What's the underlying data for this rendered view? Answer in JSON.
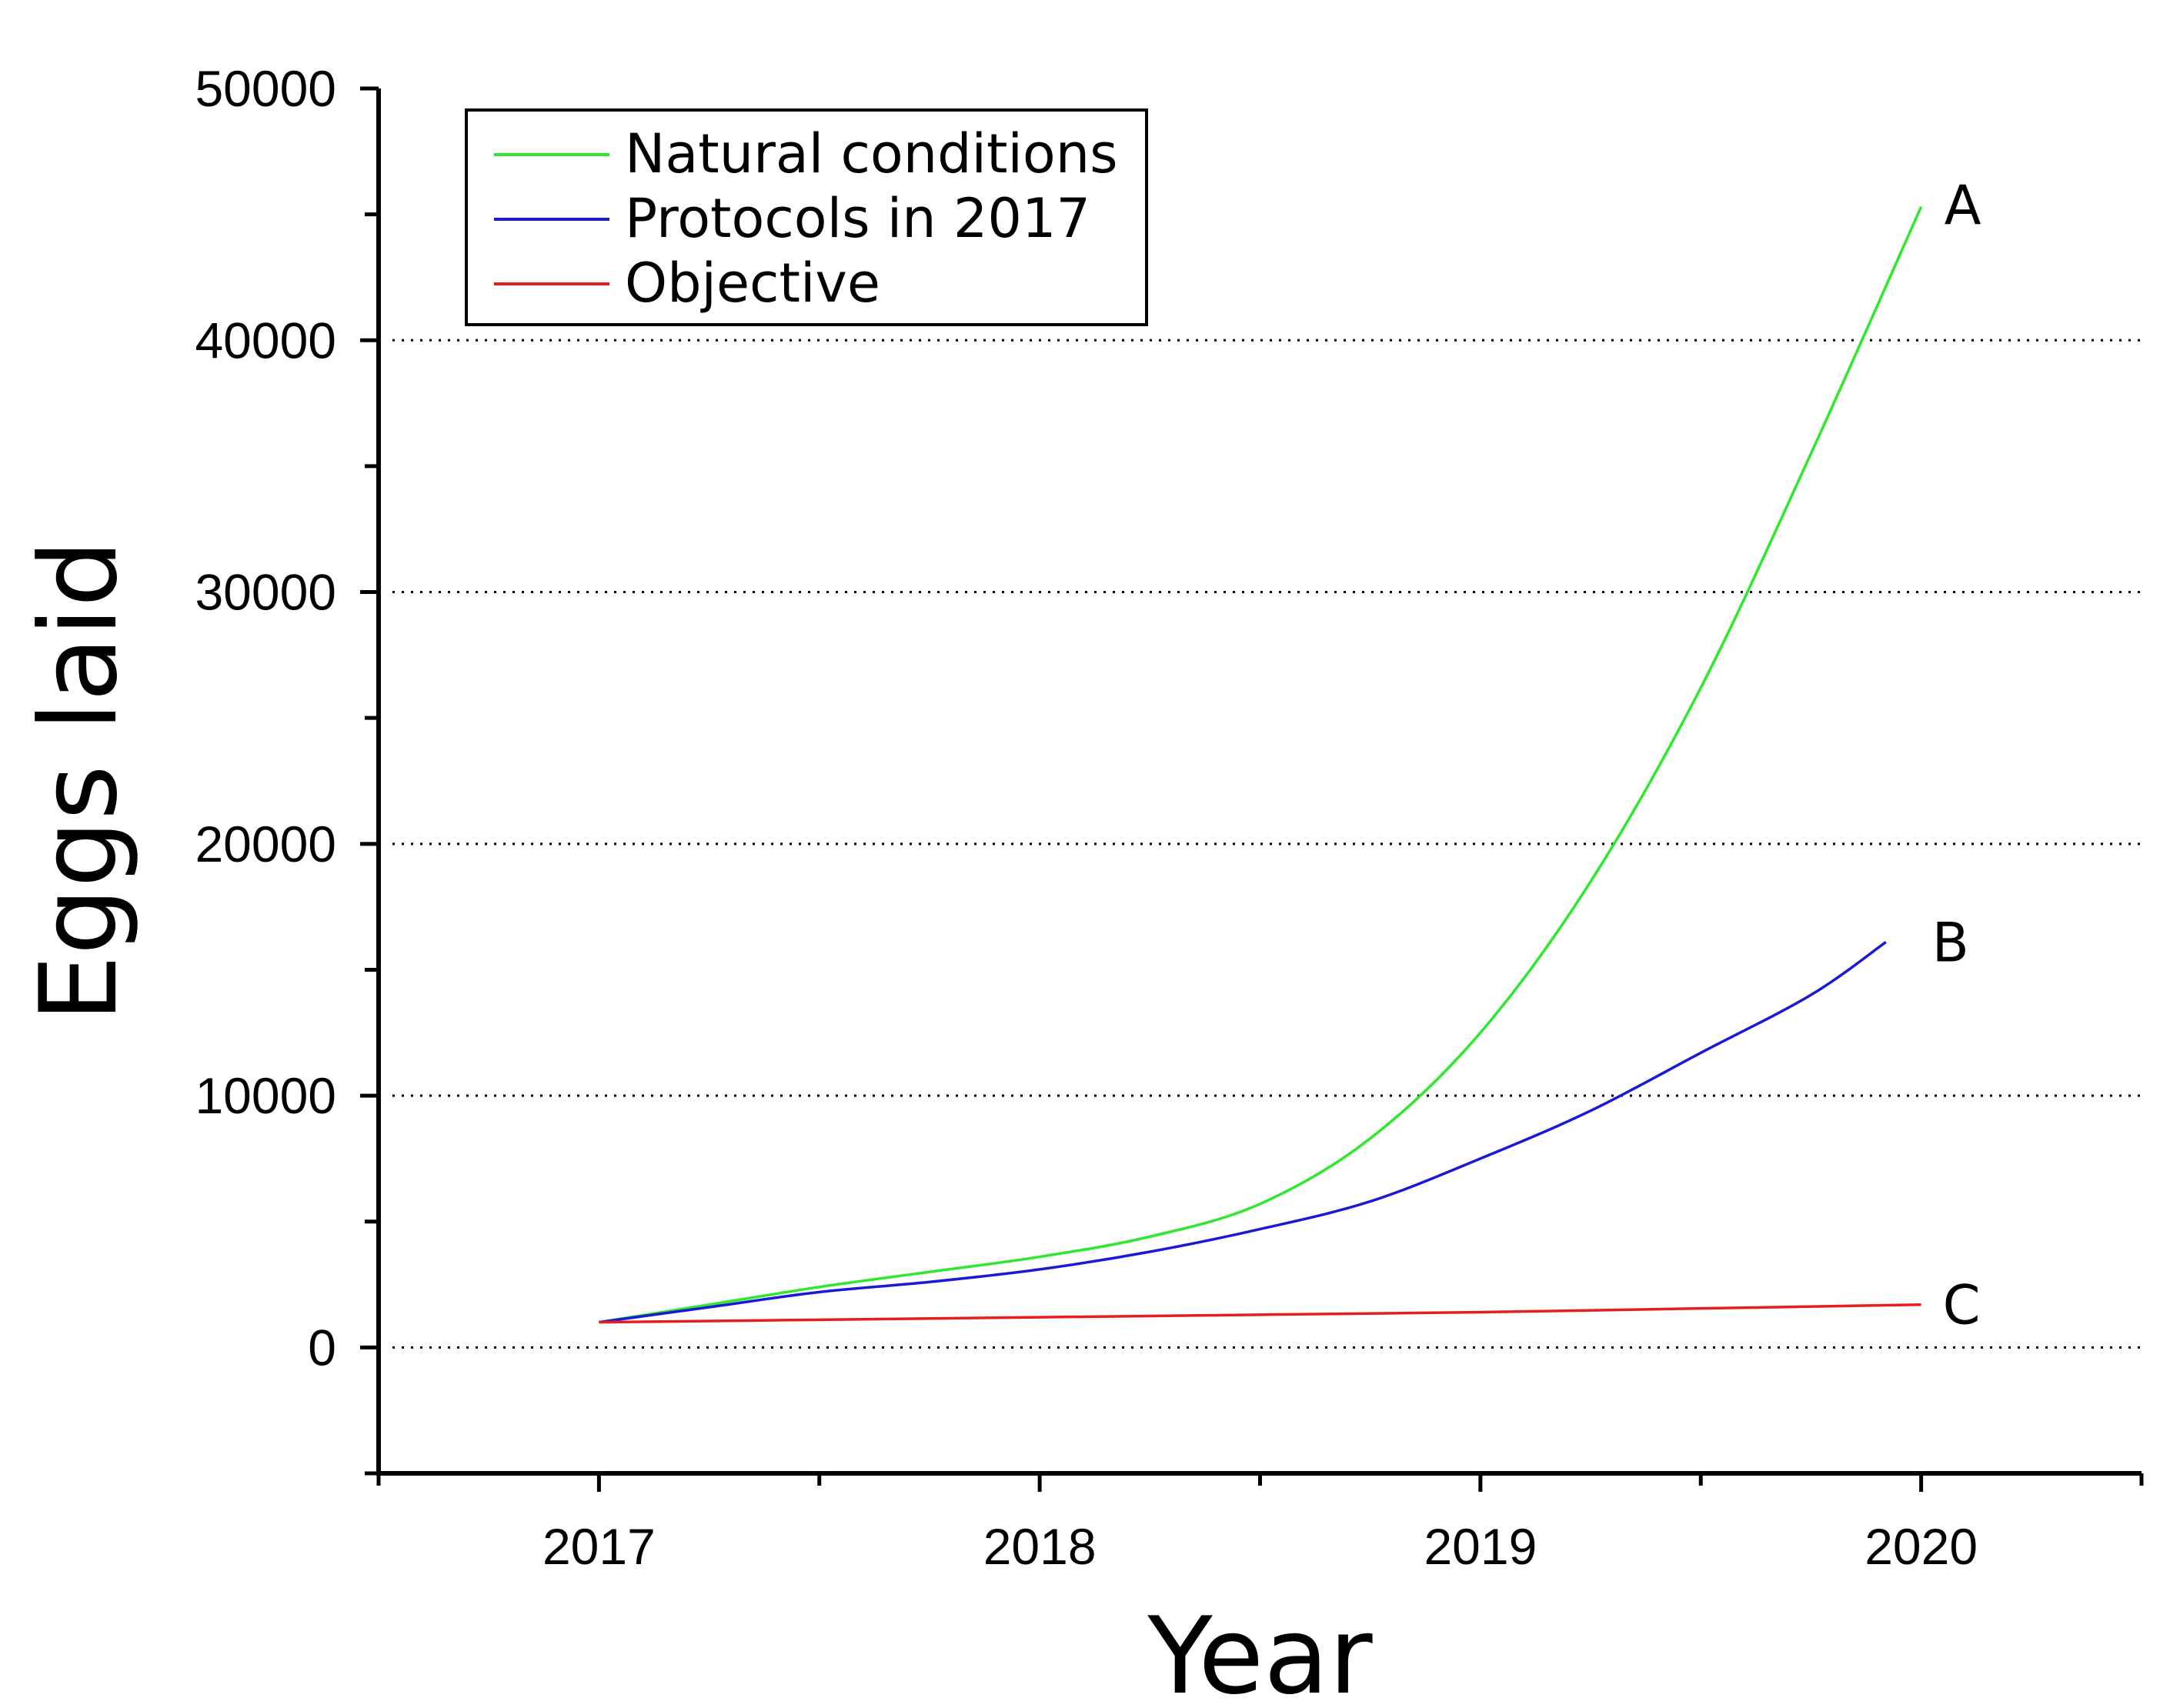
{
  "chart_data": {
    "type": "line",
    "xlabel": "Year",
    "ylabel": "Eggs laid",
    "xlim": [
      2016.5,
      2020.5
    ],
    "ylim": [
      -5000,
      50000
    ],
    "xticks": [
      2017,
      2018,
      2019,
      2020
    ],
    "yticks": [
      0,
      10000,
      20000,
      30000,
      40000,
      50000
    ],
    "grid": "horizontal dotted",
    "legend_position": "top-left",
    "series": [
      {
        "name": "Natural conditions",
        "color": "#2ee82e",
        "end_label": "A",
        "points": [
          [
            2017,
            1000
          ],
          [
            2017.25,
            1700
          ],
          [
            2017.5,
            2400
          ],
          [
            2017.75,
            3000
          ],
          [
            2018,
            3600
          ],
          [
            2018.25,
            4400
          ],
          [
            2018.5,
            5700
          ],
          [
            2018.75,
            8300
          ],
          [
            2019,
            12500
          ],
          [
            2019.25,
            18500
          ],
          [
            2019.5,
            26200
          ],
          [
            2019.75,
            35500
          ],
          [
            2020,
            45300
          ]
        ]
      },
      {
        "name": "Protocols in 2017",
        "color": "#1a1ad6",
        "end_label": "B",
        "points": [
          [
            2017,
            1000
          ],
          [
            2017.25,
            1600
          ],
          [
            2017.5,
            2200
          ],
          [
            2017.75,
            2600
          ],
          [
            2018,
            3100
          ],
          [
            2018.25,
            3800
          ],
          [
            2018.5,
            4700
          ],
          [
            2018.75,
            5800
          ],
          [
            2019,
            7500
          ],
          [
            2019.25,
            9400
          ],
          [
            2019.5,
            11700
          ],
          [
            2019.75,
            14000
          ],
          [
            2019.92,
            16100
          ]
        ]
      },
      {
        "name": "Objective",
        "color": "#e81e1e",
        "end_label": "C",
        "points": [
          [
            2017,
            1000
          ],
          [
            2017.5,
            1100
          ],
          [
            2018,
            1200
          ],
          [
            2018.5,
            1300
          ],
          [
            2019,
            1400
          ],
          [
            2019.5,
            1550
          ],
          [
            2020,
            1700
          ]
        ]
      }
    ]
  }
}
